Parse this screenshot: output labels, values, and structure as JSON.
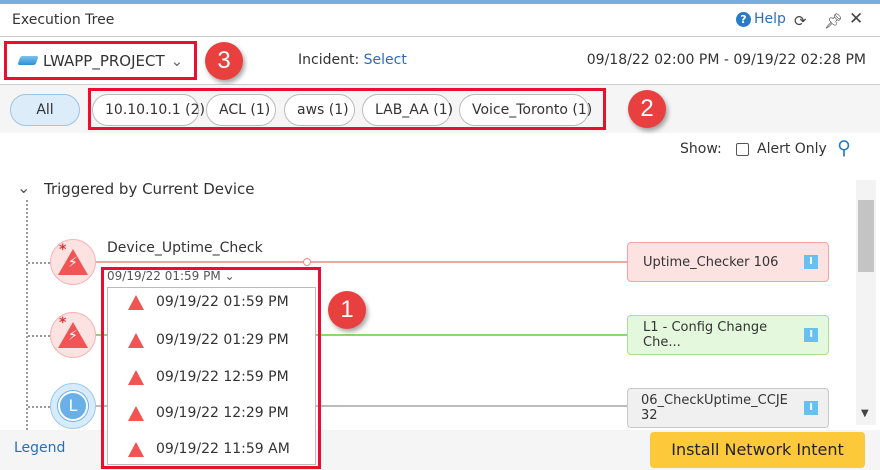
{
  "window": {
    "title": "Execution Tree",
    "help": "Help",
    "icons": [
      "help-icon",
      "refresh-icon",
      "pin-icon",
      "close-icon"
    ]
  },
  "header": {
    "project": "LWAPP_PROJECT",
    "incident_label": "Incident:",
    "incident_value": "Select",
    "date_range": "09/18/22 02:00 PM - 09/19/22 02:28 PM"
  },
  "filters": {
    "all": "All",
    "pills": [
      "10.10.10.1 (2)",
      "ACL (1)",
      "aws (1)",
      "LAB_AA (1)",
      "Voice_Toronto (1)"
    ]
  },
  "show": {
    "label": "Show:",
    "alert_only": "Alert Only",
    "alert_only_checked": false
  },
  "section": {
    "title": "Triggered by Current Device"
  },
  "nodes": [
    {
      "name": "Device_Uptime_Check",
      "time": "09/19/22 01:59 PM",
      "target": "Uptime_Checker 106",
      "status": "alert",
      "color": "#f5a3a3"
    },
    {
      "target": "L1 - Config Change Che...",
      "status": "alert",
      "color": "#8fd47a"
    },
    {
      "target": "06_CheckUptime_CCJE 32",
      "status": "scheduled",
      "color": "#bbbbbb"
    }
  ],
  "dropdown": {
    "items": [
      "09/19/22 01:59 PM",
      "09/19/22 01:29 PM",
      "09/19/22 12:59 PM",
      "09/19/22 12:29 PM",
      "09/19/22 11:59 AM"
    ]
  },
  "annotations": [
    "1",
    "2",
    "3"
  ],
  "footer": {
    "legend": "Legend",
    "install": "Install Network Intent"
  },
  "colors": {
    "accent": "#2a6ebb",
    "install": "#fcc93a",
    "annotation": "#e8102e"
  }
}
